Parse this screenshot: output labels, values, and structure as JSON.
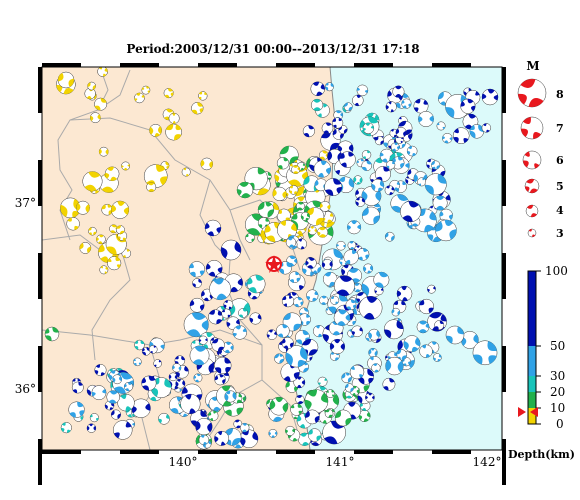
{
  "title": "Period:2003/12/31 00:00--2013/12/31 17:18",
  "map": {
    "lon_ticks": [
      "140°",
      "141°",
      "142°"
    ],
    "lat_ticks": [
      "37°",
      "36°"
    ],
    "land_color": "#fce8d2",
    "sea_color": "#dcfafa",
    "border_color": "#888888",
    "boundary_color": "#aaaaaa"
  },
  "magnitude_legend": {
    "title": "M",
    "entries": [
      "8",
      "7",
      "6",
      "5",
      "4",
      "3"
    ],
    "color": "#e8181e"
  },
  "depth_scale": {
    "ticks": [
      "100",
      "50",
      "30",
      "20",
      "10",
      "0"
    ],
    "label": "Depth(km)",
    "colors": {
      "shallow": "#f2d300",
      "mid_shallow": "#22b14c",
      "mid": "#19c4ba",
      "mid_deep": "#30a2e6",
      "deep": "#0010b0"
    }
  },
  "epicenter_marker": "red-star"
}
